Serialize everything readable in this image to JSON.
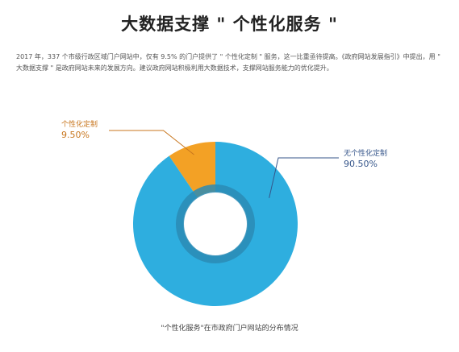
{
  "header": {
    "title": "大数据支撑 \" 个性化服务 \""
  },
  "intro": {
    "text": "2017 年，337 个市级行政区域门户网站中，仅有 9.5% 的门户提供了 \" 个性化定制 \" 服务，这一比重亟待提高。《政府网站发展指引》中提出，用 \" 大数据支撑 \" 是政府网站未来的发展方向。建议政府网站积极利用大数据技术，支撑网站服务能力的优化提升。"
  },
  "chart_data": {
    "type": "pie",
    "variant": "donut",
    "categories": [
      "个性化定制",
      "无个性化定制"
    ],
    "values": [
      9.5,
      90.5
    ],
    "labels": [
      "9.50%",
      "90.50%"
    ],
    "colors": [
      "#F3A125",
      "#2EAEDF"
    ],
    "label_colors": [
      "#C8761E",
      "#35558A"
    ],
    "title": "\"个性化服务\"在市政府门户网站的分布情况"
  },
  "colors": {
    "inner_ring": "#2A8BB5",
    "leader_line_custom": "#C8761E",
    "leader_line_none": "#35558A"
  }
}
